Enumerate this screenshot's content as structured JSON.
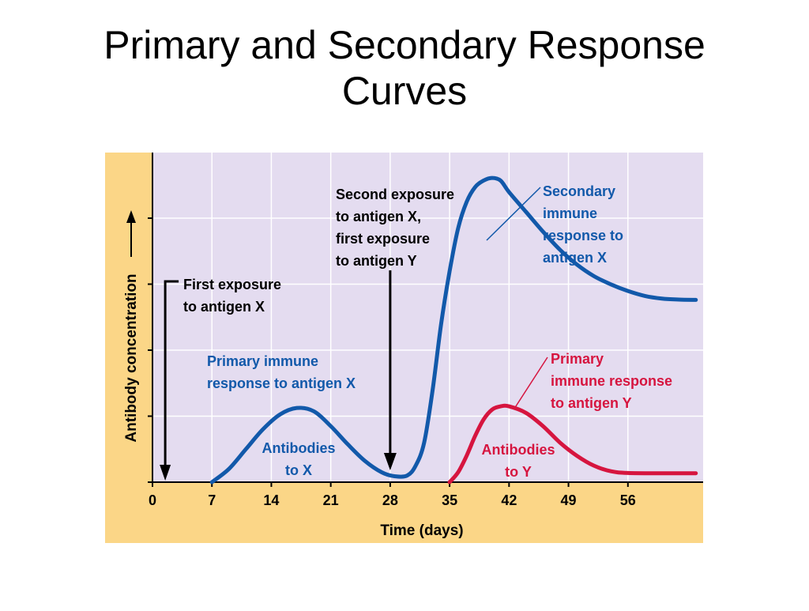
{
  "slide": {
    "title_line1": "Primary and Secondary Response",
    "title_line2": "Curves"
  },
  "colors": {
    "frame": "#fbd687",
    "plot_background": "#e4dcf0",
    "grid": "#ffffff",
    "antigen_x_curve": "#1259aa",
    "antigen_y_curve": "#d6153f",
    "text": "#000000"
  },
  "chart_data": {
    "type": "line",
    "xlabel": "Time (days)",
    "ylabel": "Antibody concentration",
    "xlim": [
      0,
      64
    ],
    "ylim": [
      0,
      100
    ],
    "x_ticks": [
      0,
      7,
      14,
      21,
      28,
      35,
      42,
      49,
      56
    ],
    "y_axis_values_shown": false,
    "grid": true,
    "series": [
      {
        "key": "antigen_x",
        "points": [
          [
            7,
            0
          ],
          [
            9,
            4
          ],
          [
            11,
            10
          ],
          [
            13,
            16
          ],
          [
            15,
            20.5
          ],
          [
            17,
            22.5
          ],
          [
            19,
            21.5
          ],
          [
            21,
            17
          ],
          [
            23,
            11.5
          ],
          [
            25,
            6.5
          ],
          [
            27,
            3
          ],
          [
            28.5,
            1.8
          ],
          [
            30,
            2
          ],
          [
            31,
            5
          ],
          [
            32,
            12
          ],
          [
            33,
            28
          ],
          [
            34,
            48
          ],
          [
            35,
            64
          ],
          [
            36,
            77
          ],
          [
            37,
            85
          ],
          [
            38,
            89.5
          ],
          [
            39,
            91.5
          ],
          [
            40,
            92.3
          ],
          [
            41,
            91.5
          ],
          [
            42,
            88
          ],
          [
            44,
            82
          ],
          [
            46,
            76
          ],
          [
            48,
            70.5
          ],
          [
            50,
            66
          ],
          [
            52,
            62.5
          ],
          [
            54,
            60
          ],
          [
            56,
            58
          ],
          [
            58,
            56.5
          ],
          [
            60,
            55.7
          ],
          [
            62,
            55.4
          ],
          [
            64,
            55.3
          ]
        ]
      },
      {
        "key": "antigen_y",
        "points": [
          [
            35,
            0
          ],
          [
            36,
            3
          ],
          [
            37,
            8
          ],
          [
            38,
            14
          ],
          [
            39,
            19
          ],
          [
            40,
            22
          ],
          [
            41,
            23
          ],
          [
            42,
            23
          ],
          [
            44,
            21
          ],
          [
            46,
            17
          ],
          [
            48,
            12
          ],
          [
            50,
            8
          ],
          [
            52,
            5
          ],
          [
            54,
            3.3
          ],
          [
            56,
            2.8
          ],
          [
            60,
            2.7
          ],
          [
            64,
            2.7
          ]
        ]
      }
    ],
    "annotations": {
      "first_exposure": {
        "text_line1": "First exposure",
        "text_line2": "to antigen X",
        "x": 1.5
      },
      "second_exposure": {
        "text_line1": "Second exposure",
        "text_line2": "to antigen X,",
        "text_line3": "first exposure",
        "text_line4": "to antigen Y",
        "x": 28
      },
      "primary_x": {
        "text_line1": "Primary immune",
        "text_line2": "response to antigen X"
      },
      "antibodies_x": {
        "text_line1": "Antibodies",
        "text_line2": "to X"
      },
      "secondary_x": {
        "text_line1": "Secondary",
        "text_line2": "immune",
        "text_line3": "response to",
        "text_line4": "antigen X"
      },
      "primary_y": {
        "text_line1": "Primary",
        "text_line2": "immune response",
        "text_line3": "to antigen Y"
      },
      "antibodies_y": {
        "text_line1": "Antibodies",
        "text_line2": "to Y"
      }
    }
  }
}
